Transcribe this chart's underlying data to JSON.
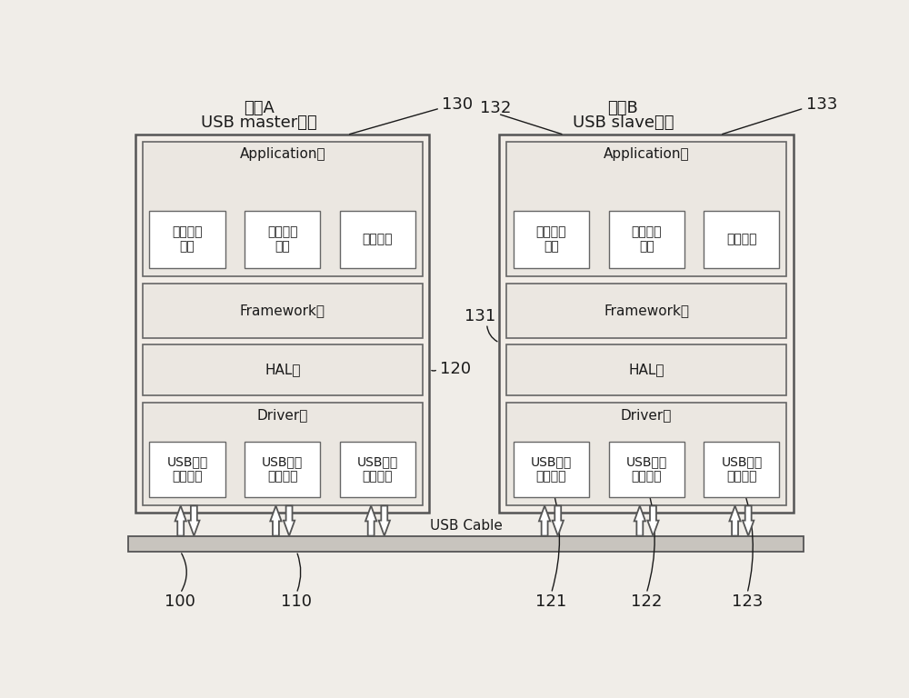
{
  "bg_color": "#f0ede8",
  "box_outer_color": "#e8e4df",
  "box_inner_color": "#ece9e4",
  "box_white": "#ffffff",
  "border_dark": "#4a4a4a",
  "border_mid": "#666666",
  "text_color": "#1a1a1a",
  "cable_color": "#c8c4be",
  "left_title_line1": "手机A",
  "left_title_line2": "USB master模式",
  "right_title_line1": "手机B",
  "right_title_line2": "USB slave模式",
  "label_130": "130",
  "label_131": "131",
  "label_132": "132",
  "label_133": "133",
  "label_120": "120",
  "label_121": "121",
  "label_122": "122",
  "label_123": "123",
  "label_100": "100",
  "label_110": "110",
  "app_layer": "Application层",
  "framework_layer": "Framework层",
  "hal_layer": "HAL层",
  "driver_layer": "Driver层",
  "app_box1": "文件传输\n应用",
  "app_box2": "配置共享\n应用",
  "app_box3": "其它应用",
  "driver_box1": "USB文件\n传输协议",
  "driver_box2": "USB通讯\n设备协议",
  "driver_box3": "USB人机\n交互协议",
  "usb_cable": "USB Cable"
}
